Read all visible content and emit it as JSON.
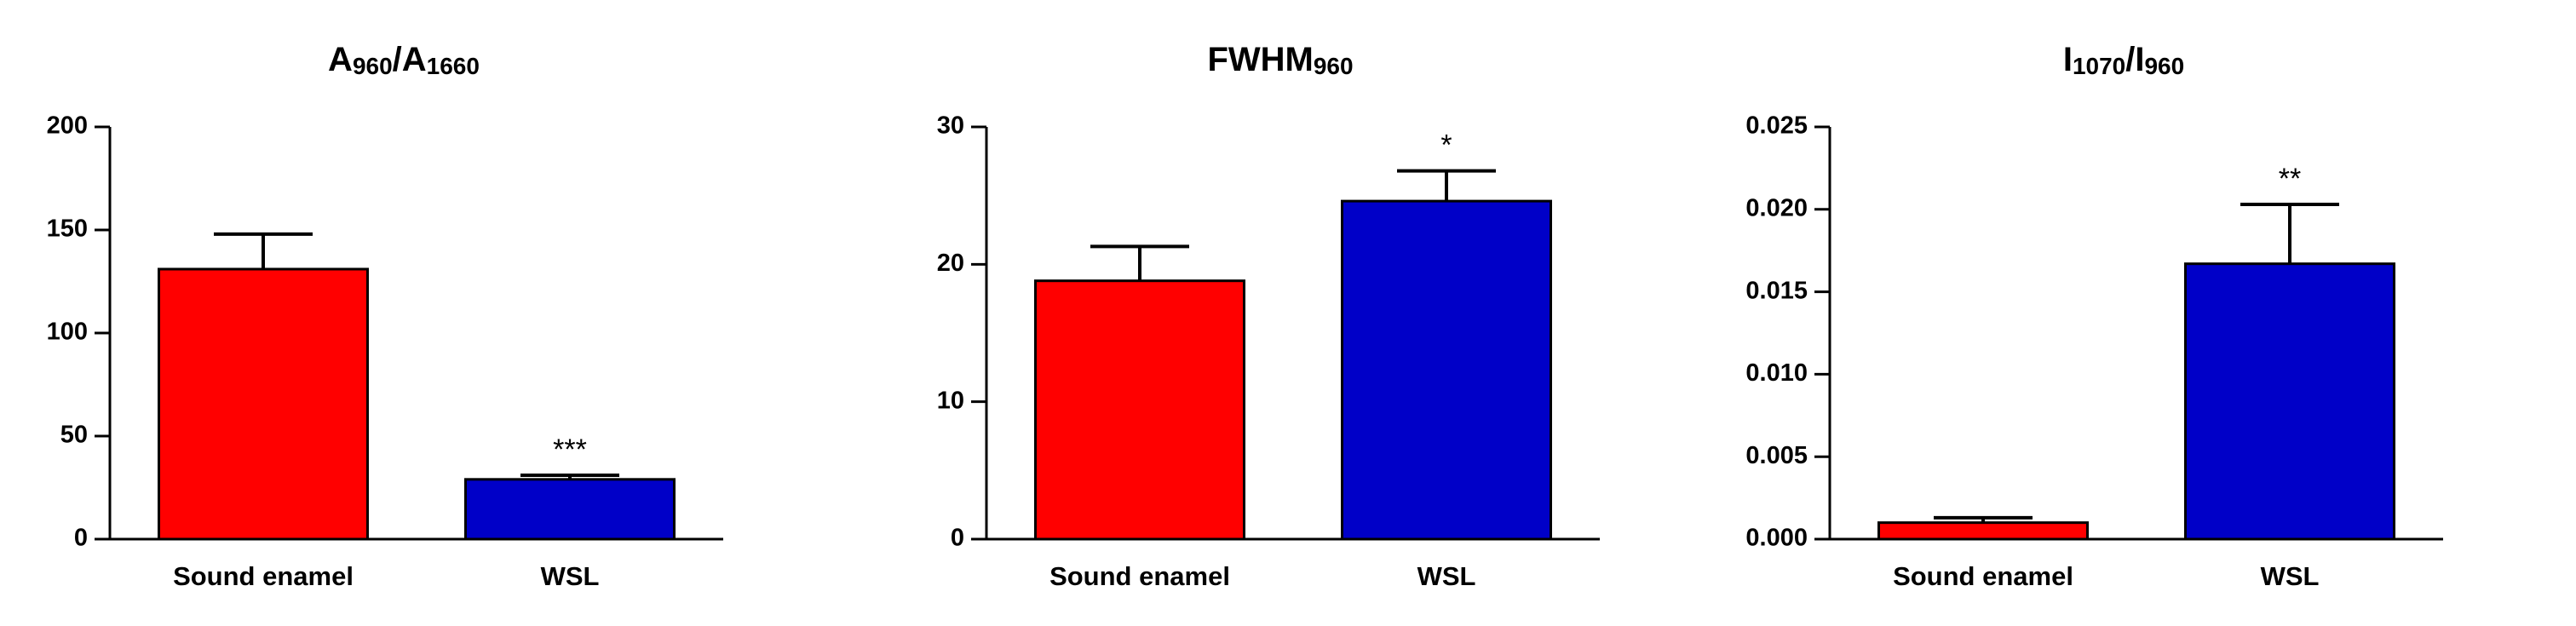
{
  "chart_data": [
    {
      "type": "bar",
      "title": "A960/A1660",
      "categories": [
        "Sound enamel",
        "WSL"
      ],
      "values": [
        131,
        29
      ],
      "errors": [
        17,
        2
      ],
      "colors": [
        "#ff0000",
        "#0000c8"
      ],
      "annotations": [
        null,
        "***"
      ],
      "ylim": [
        0,
        200
      ],
      "yticks": [
        0,
        50,
        100,
        150,
        200
      ]
    },
    {
      "type": "bar",
      "title": "FWHM960",
      "categories": [
        "Sound enamel",
        "WSL"
      ],
      "values": [
        18.8,
        24.6
      ],
      "errors": [
        2.5,
        2.2
      ],
      "colors": [
        "#ff0000",
        "#0000c8"
      ],
      "annotations": [
        null,
        "*"
      ],
      "ylim": [
        0,
        30
      ],
      "yticks": [
        0,
        10,
        20,
        30
      ]
    },
    {
      "type": "bar",
      "title": "I1070/I960",
      "categories": [
        "Sound enamel",
        "WSL"
      ],
      "values": [
        0.001,
        0.0167
      ],
      "errors": [
        0.0003,
        0.0036
      ],
      "colors": [
        "#ff0000",
        "#0000c8"
      ],
      "annotations": [
        null,
        "**"
      ],
      "ylim": [
        0,
        0.025
      ],
      "yticks": [
        {
          "value": 0,
          "label": "0.000"
        },
        {
          "value": 0.005,
          "label": "0.005"
        },
        {
          "value": 0.01,
          "label": "0.010"
        },
        {
          "value": 0.015,
          "label": "0.015"
        },
        {
          "value": 0.02,
          "label": "0.020"
        },
        {
          "value": 0.025,
          "label": "0.025"
        }
      ]
    }
  ]
}
